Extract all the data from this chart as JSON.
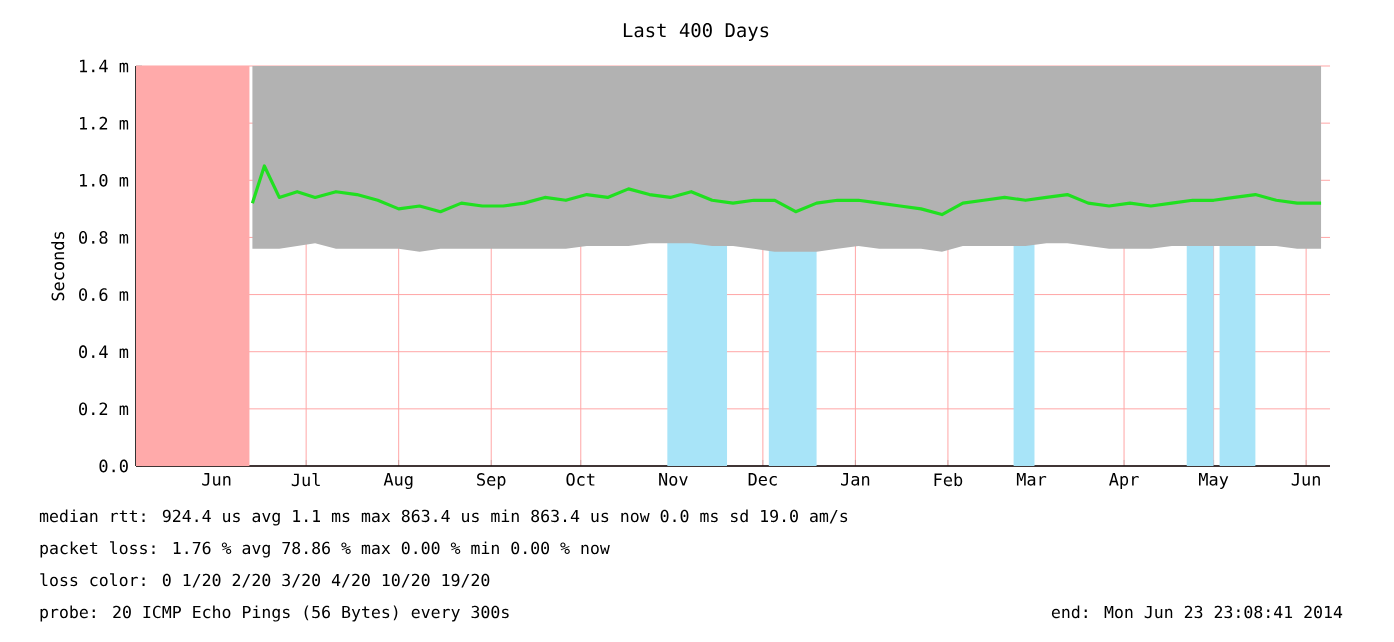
{
  "chart_data": {
    "type": "line",
    "title": "Last 400 Days",
    "ylabel": "Seconds",
    "xlim": [
      "2013-05-19",
      "2014-06-23"
    ],
    "xticks": [
      {
        "value": "2013-06-15",
        "label": "Jun"
      },
      {
        "value": "2013-07-15",
        "label": "Jul"
      },
      {
        "value": "2013-08-15",
        "label": "Aug"
      },
      {
        "value": "2013-09-15",
        "label": "Sep"
      },
      {
        "value": "2013-10-15",
        "label": "Oct"
      },
      {
        "value": "2013-11-15",
        "label": "Nov"
      },
      {
        "value": "2013-12-15",
        "label": "Dec"
      },
      {
        "value": "2014-01-15",
        "label": "Jan"
      },
      {
        "value": "2014-02-15",
        "label": "Feb"
      },
      {
        "value": "2014-03-15",
        "label": "Mar"
      },
      {
        "value": "2014-04-15",
        "label": "Apr"
      },
      {
        "value": "2014-05-15",
        "label": "May"
      },
      {
        "value": "2014-06-15",
        "label": "Jun"
      }
    ],
    "ylim": [
      0,
      1.4
    ],
    "yticks": [
      {
        "value": 0,
        "label": "0.0"
      },
      {
        "value": 0.2,
        "label": "0.2 m"
      },
      {
        "value": 0.4,
        "label": "0.4 m"
      },
      {
        "value": 0.6,
        "label": "0.6 m"
      },
      {
        "value": 0.8,
        "label": "0.8 m"
      },
      {
        "value": 1.0,
        "label": "1.0 m"
      },
      {
        "value": 1.2,
        "label": "1.2 m"
      },
      {
        "value": 1.4,
        "label": "1.4 m"
      }
    ],
    "grid": true,
    "series": [
      {
        "color": "#20e020",
        "x": [
          "2013-06-27",
          "2013-07-01",
          "2013-07-06",
          "2013-07-12",
          "2013-07-18",
          "2013-07-25",
          "2013-08-01",
          "2013-08-08",
          "2013-08-15",
          "2013-08-22",
          "2013-08-29",
          "2013-09-05",
          "2013-09-12",
          "2013-09-19",
          "2013-09-26",
          "2013-10-03",
          "2013-10-10",
          "2013-10-17",
          "2013-10-24",
          "2013-10-31",
          "2013-11-07",
          "2013-11-14",
          "2013-11-21",
          "2013-11-28",
          "2013-12-05",
          "2013-12-12",
          "2013-12-19",
          "2013-12-26",
          "2014-01-02",
          "2014-01-09",
          "2014-01-16",
          "2014-01-23",
          "2014-01-30",
          "2014-02-06",
          "2014-02-13",
          "2014-02-20",
          "2014-02-27",
          "2014-03-06",
          "2014-03-13",
          "2014-03-20",
          "2014-03-27",
          "2014-04-03",
          "2014-04-10",
          "2014-04-17",
          "2014-04-24",
          "2014-05-01",
          "2014-05-08",
          "2014-05-15",
          "2014-05-22",
          "2014-05-29",
          "2014-06-05",
          "2014-06-12",
          "2014-06-20"
        ],
        "values": [
          0.92,
          1.05,
          0.94,
          0.96,
          0.94,
          0.96,
          0.95,
          0.93,
          0.9,
          0.91,
          0.89,
          0.92,
          0.91,
          0.91,
          0.92,
          0.94,
          0.93,
          0.95,
          0.94,
          0.97,
          0.95,
          0.94,
          0.96,
          0.93,
          0.92,
          0.93,
          0.93,
          0.89,
          0.92,
          0.93,
          0.93,
          0.92,
          0.91,
          0.9,
          0.88,
          0.92,
          0.93,
          0.94,
          0.93,
          0.94,
          0.95,
          0.92,
          0.91,
          0.92,
          0.91,
          0.92,
          0.93,
          0.93,
          0.94,
          0.95,
          0.93,
          0.92,
          0.92
        ],
        "lower": [
          0.76,
          0.76,
          0.76,
          0.77,
          0.78,
          0.76,
          0.76,
          0.76,
          0.76,
          0.75,
          0.76,
          0.76,
          0.76,
          0.76,
          0.76,
          0.76,
          0.76,
          0.77,
          0.77,
          0.77,
          0.78,
          0.78,
          0.78,
          0.77,
          0.77,
          0.76,
          0.75,
          0.75,
          0.75,
          0.76,
          0.77,
          0.76,
          0.76,
          0.76,
          0.75,
          0.77,
          0.77,
          0.77,
          0.77,
          0.78,
          0.78,
          0.77,
          0.76,
          0.76,
          0.76,
          0.77,
          0.77,
          0.77,
          0.77,
          0.77,
          0.77,
          0.76,
          0.76
        ],
        "upper": [
          1.4,
          1.4,
          1.4,
          1.4,
          1.4,
          1.4,
          1.4,
          1.4,
          1.4,
          1.4,
          1.4,
          1.4,
          1.4,
          1.4,
          1.4,
          1.4,
          1.4,
          1.4,
          1.4,
          1.4,
          1.4,
          1.4,
          1.4,
          1.4,
          1.4,
          1.4,
          1.4,
          1.4,
          1.4,
          1.4,
          1.4,
          1.4,
          1.4,
          1.4,
          1.4,
          1.4,
          1.4,
          1.4,
          1.4,
          1.4,
          1.4,
          1.4,
          1.4,
          1.4,
          1.4,
          1.4,
          1.4,
          1.4,
          1.4,
          1.4,
          1.4,
          1.4,
          1.4
        ]
      }
    ],
    "bands": [
      {
        "axis": "x",
        "from": "2013-05-19",
        "to": "2013-06-26",
        "color": "#ffaaaa"
      },
      {
        "axis": "x",
        "from": "2013-11-13",
        "to": "2013-12-03",
        "color": "#a8e4f8"
      },
      {
        "axis": "x",
        "from": "2013-12-17",
        "to": "2014-01-02",
        "color": "#a8e4f8"
      },
      {
        "axis": "x",
        "from": "2014-03-09",
        "to": "2014-03-16",
        "color": "#a8e4f8"
      },
      {
        "axis": "x",
        "from": "2014-05-06",
        "to": "2014-05-15",
        "color": "#a8e4f8"
      },
      {
        "axis": "x",
        "from": "2014-05-17",
        "to": "2014-05-29",
        "color": "#a8e4f8"
      }
    ],
    "annotations": [
      "median rtt: 924.4 us avg 1.1 ms max 863.4 us min 863.4 us now 0.0 ms sd 19.0 am/s",
      "packet loss: 1.76 % avg 78.86 % max 0.00 % min 0.00 % now",
      "loss color: 0 1/20 2/20 3/20 4/20 10/20 19/20",
      "probe: 20 ICMP Echo Pings (56 Bytes) every 300s",
      "end: Mon Jun 23 23:08:41 2014"
    ]
  }
}
